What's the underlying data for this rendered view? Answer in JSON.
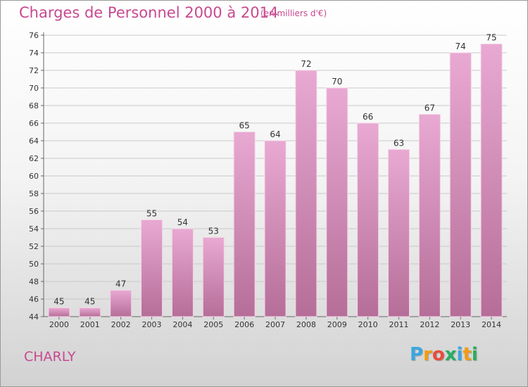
{
  "title": "Charges de Personnel 2000 à 2014",
  "subtitle": "(en milliers d'€)",
  "city": "CHARLY",
  "logo": {
    "letters": [
      "P",
      "r",
      "o",
      "x",
      "i",
      "t",
      "i"
    ],
    "colors": [
      "#3aa7e0",
      "#f39c12",
      "#e74c3c",
      "#27ae60",
      "#3aa7e0",
      "#f39c12",
      "#27ae60"
    ]
  },
  "colors": {
    "accent": "#c8488f",
    "bar_top": "#e8a9d2",
    "bar_bottom": "#b56e98"
  },
  "chart_data": {
    "type": "bar",
    "categories": [
      "2000",
      "2001",
      "2002",
      "2003",
      "2004",
      "2005",
      "2006",
      "2007",
      "2008",
      "2009",
      "2010",
      "2011",
      "2012",
      "2013",
      "2014"
    ],
    "values": [
      45,
      45,
      47,
      55,
      54,
      53,
      65,
      64,
      72,
      70,
      66,
      63,
      67,
      74,
      75
    ],
    "ylim": [
      44,
      76
    ],
    "yticks": [
      44,
      46,
      48,
      50,
      52,
      54,
      56,
      58,
      60,
      62,
      64,
      66,
      68,
      70,
      72,
      74,
      76
    ],
    "grid": true,
    "legend": "none"
  }
}
